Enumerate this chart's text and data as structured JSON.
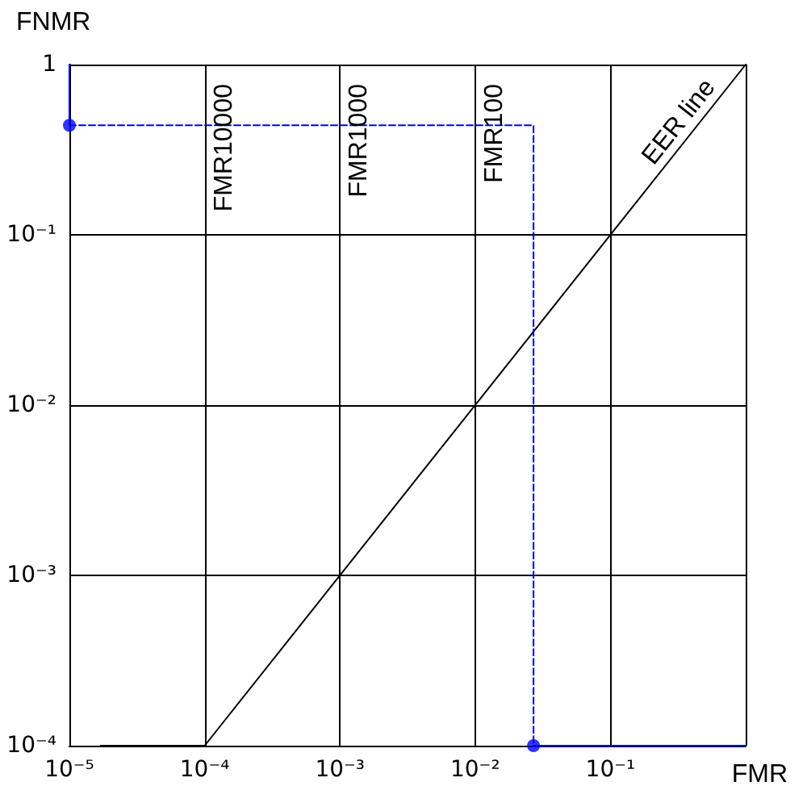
{
  "chart_data": {
    "type": "line",
    "xlabel": "FMR",
    "ylabel": "FNMR",
    "log": "xy",
    "grid": true,
    "xlim": [
      1e-05,
      1
    ],
    "ylim": [
      0.0001,
      1
    ],
    "xticks": [
      {
        "value": 1e-05,
        "label": "10⁻⁵"
      },
      {
        "value": 0.0001,
        "label": "10⁻⁴"
      },
      {
        "value": 0.001,
        "label": "10⁻³"
      },
      {
        "value": 0.01,
        "label": "10⁻²"
      },
      {
        "value": 0.1,
        "label": "10⁻¹"
      },
      {
        "value": 1,
        "label": null
      }
    ],
    "yticks": [
      {
        "value": 0.0001,
        "label": "10⁻⁴"
      },
      {
        "value": 0.001,
        "label": "10⁻³"
      },
      {
        "value": 0.01,
        "label": "10⁻²"
      },
      {
        "value": 0.1,
        "label": "10⁻¹"
      },
      1
    ],
    "series": [
      {
        "color": "#000000",
        "x": [
          1.7e-05,
          0.0001,
          1
        ],
        "values": [
          0.0001,
          0.0001,
          1
        ],
        "line_style": "solid",
        "marker": "none"
      },
      {
        "color": "#0000ff",
        "x": [
          1e-05,
          1e-05
        ],
        "values": [
          1,
          0.44
        ],
        "line_style": "solid",
        "marker": "none"
      },
      {
        "color": "#0000ff",
        "x": [
          1e-05,
          0.027,
          0.027
        ],
        "values": [
          0.44,
          0.44,
          0.0001
        ],
        "line_style": "dashed",
        "marker": "none"
      },
      {
        "color": "#0000ff",
        "x": [
          0.027,
          1
        ],
        "values": [
          0.0001,
          0.0001
        ],
        "line_style": "solid",
        "marker": "none"
      },
      {
        "type": "scatter",
        "color": "#0000ff",
        "x": [
          1e-05,
          0.027
        ],
        "values": [
          0.44,
          0.0001
        ],
        "marker": "circle"
      }
    ],
    "ref_lines": [
      {
        "axis": "x",
        "value": 0.0001,
        "label": "FMR10000",
        "color": "#000000"
      },
      {
        "axis": "x",
        "value": 0.001,
        "label": "FMR1000",
        "color": "#000000"
      },
      {
        "axis": "x",
        "value": 0.01,
        "label": "FMR100",
        "color": "#000000"
      }
    ],
    "annotations": [
      {
        "text": "EER line",
        "x": 0.4,
        "y": 0.4
      }
    ]
  }
}
